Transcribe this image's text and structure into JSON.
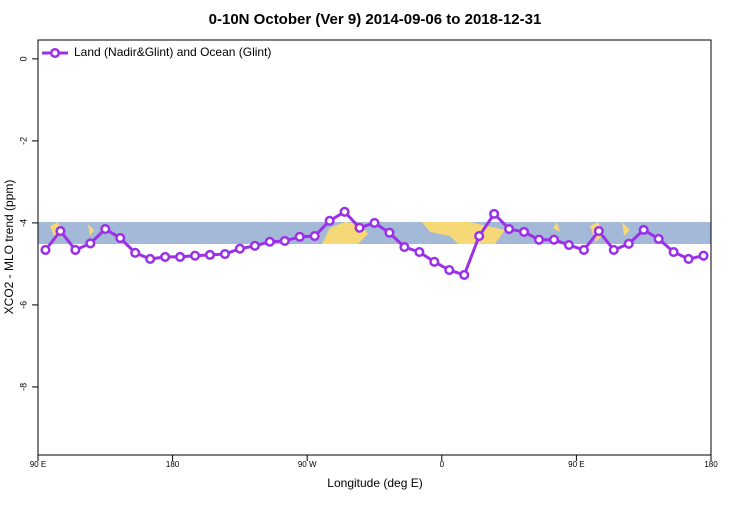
{
  "chart_data": {
    "type": "line",
    "title": "0-10N October (Ver 9)   2014-09-06 to 2018-12-31",
    "x_label": "Longitude (deg E)",
    "y_label": "XCO2 - MLO trend (ppm)",
    "x": [
      95,
      105,
      115,
      125,
      135,
      145,
      155,
      165,
      175,
      185,
      195,
      205,
      215,
      225,
      235,
      245,
      255,
      265,
      275,
      285,
      295,
      305,
      315,
      325,
      335,
      345,
      355,
      365,
      375,
      385,
      395,
      405,
      415,
      425,
      435,
      445,
      455,
      465,
      475,
      485,
      495,
      505,
      515,
      525,
      535
    ],
    "series": [
      {
        "name": "Land (Nadir&Glint) and Ocean (Glint)",
        "color": "#9b30e8",
        "values": [
          -4.66,
          -4.2,
          -4.66,
          -4.5,
          -4.15,
          -4.37,
          -4.73,
          -4.88,
          -4.83,
          -4.83,
          -4.8,
          -4.78,
          -4.76,
          -4.63,
          -4.56,
          -4.46,
          -4.44,
          -4.34,
          -4.32,
          -3.95,
          -3.73,
          -4.12,
          -4.0,
          -4.24,
          -4.59,
          -4.71,
          -4.95,
          -5.15,
          -5.27,
          -4.32,
          -3.78,
          -4.15,
          -4.22,
          -4.41,
          -4.41,
          -4.54,
          -4.66,
          -4.2,
          -4.66,
          -4.51,
          -4.17,
          -4.39,
          -4.71,
          -4.88,
          -4.8
        ]
      }
    ],
    "xlim": [
      90,
      540
    ],
    "ylim": [
      -9.66,
      0.46
    ],
    "xticks": [
      {
        "value": 90,
        "label": "90 E"
      },
      180,
      {
        "value": 270,
        "label": "90 W"
      },
      {
        "value": 360,
        "label": "0"
      },
      {
        "value": 450,
        "label": "90 E"
      },
      {
        "value": 540,
        "label": "180"
      }
    ],
    "yticks": [
      -8,
      -6,
      -4,
      -2,
      0
    ],
    "legend": "top-left"
  }
}
